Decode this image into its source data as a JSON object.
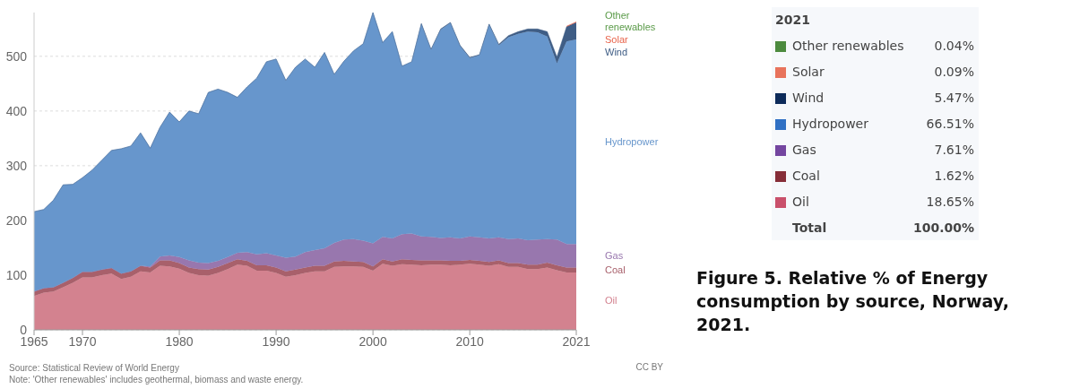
{
  "chart_data": [
    {
      "type": "area",
      "stacked": true,
      "x": [
        1965,
        1966,
        1967,
        1968,
        1969,
        1970,
        1971,
        1972,
        1973,
        1974,
        1975,
        1976,
        1977,
        1978,
        1979,
        1980,
        1981,
        1982,
        1983,
        1984,
        1985,
        1986,
        1987,
        1988,
        1989,
        1990,
        1991,
        1992,
        1993,
        1994,
        1995,
        1996,
        1997,
        1998,
        1999,
        2000,
        2001,
        2002,
        2003,
        2004,
        2005,
        2006,
        2007,
        2008,
        2009,
        2010,
        2011,
        2012,
        2013,
        2014,
        2015,
        2016,
        2017,
        2018,
        2019,
        2020,
        2021
      ],
      "series": [
        {
          "name": "Oil",
          "color": "#d3828f",
          "values": [
            62,
            68,
            70,
            78,
            86,
            96,
            96,
            100,
            103,
            93,
            97,
            107,
            105,
            117,
            116,
            112,
            104,
            100,
            99,
            104,
            111,
            119,
            117,
            108,
            108,
            104,
            97,
            100,
            104,
            107,
            107,
            115,
            116,
            116,
            115,
            108,
            121,
            117,
            120,
            119,
            118,
            119,
            119,
            118,
            119,
            121,
            119,
            117,
            120,
            115,
            115,
            111,
            111,
            114,
            109,
            105,
            105
          ]
        },
        {
          "name": "Coal",
          "color": "#a8606b",
          "values": [
            8,
            8,
            8,
            8,
            9,
            10,
            10,
            10,
            10,
            10,
            10,
            10,
            9,
            10,
            11,
            10,
            10,
            11,
            11,
            11,
            11,
            10,
            9,
            10,
            10,
            10,
            10,
            10,
            10,
            10,
            10,
            10,
            10,
            9,
            9,
            8,
            8,
            8,
            9,
            9,
            9,
            8,
            8,
            8,
            7,
            7,
            7,
            7,
            7,
            7,
            7,
            8,
            8,
            9,
            9,
            9,
            9
          ]
        },
        {
          "name": "Gas",
          "color": "#9877ae",
          "values": [
            0,
            0,
            0,
            0,
            0,
            0,
            0,
            0,
            0,
            0,
            0,
            0,
            2,
            7,
            9,
            11,
            13,
            12,
            12,
            11,
            11,
            12,
            16,
            20,
            22,
            22,
            25,
            24,
            28,
            29,
            32,
            34,
            39,
            41,
            39,
            42,
            41,
            42,
            46,
            48,
            44,
            43,
            41,
            43,
            41,
            43,
            43,
            43,
            42,
            44,
            45,
            45,
            46,
            43,
            47,
            43,
            43
          ]
        },
        {
          "name": "Hydropower",
          "color": "#6796cc",
          "values": [
            146,
            144,
            159,
            179,
            171,
            172,
            186,
            200,
            215,
            228,
            229,
            243,
            216,
            236,
            262,
            247,
            273,
            272,
            312,
            314,
            301,
            284,
            302,
            322,
            350,
            359,
            324,
            346,
            353,
            334,
            358,
            308,
            326,
            344,
            360,
            422,
            355,
            378,
            307,
            314,
            388,
            342,
            381,
            392,
            352,
            326,
            333,
            391,
            351,
            369,
            374,
            381,
            379,
            370,
            322,
            370,
            374
          ]
        },
        {
          "name": "Wind",
          "color": "#3f5d85",
          "values": [
            0,
            0,
            0,
            0,
            0,
            0,
            0,
            0,
            0,
            0,
            0,
            0,
            0,
            0,
            0,
            0,
            0,
            0,
            0,
            0,
            0,
            0,
            0,
            0,
            0,
            0,
            0,
            0,
            0,
            0,
            0,
            0,
            0,
            0,
            0,
            0,
            0,
            0,
            0,
            0,
            1,
            1,
            1,
            1,
            1,
            1,
            1,
            1,
            2,
            3,
            4,
            5,
            6,
            9,
            12,
            27,
            31
          ]
        },
        {
          "name": "Solar",
          "color": "#e8634a",
          "values": [
            null,
            null,
            null,
            null,
            null,
            null,
            null,
            null,
            null,
            null,
            null,
            null,
            null,
            null,
            null,
            null,
            null,
            null,
            null,
            null,
            null,
            null,
            null,
            null,
            null,
            null,
            null,
            null,
            null,
            null,
            null,
            null,
            null,
            null,
            null,
            null,
            null,
            null,
            null,
            null,
            null,
            null,
            null,
            null,
            null,
            null,
            null,
            null,
            null,
            null,
            null,
            null,
            null,
            null,
            null,
            1,
            1
          ]
        },
        {
          "name": "Other renewables",
          "color": "#5a9a48",
          "values": [
            null,
            null,
            null,
            null,
            null,
            null,
            null,
            null,
            null,
            null,
            null,
            null,
            null,
            null,
            null,
            null,
            null,
            null,
            null,
            null,
            null,
            null,
            null,
            null,
            null,
            null,
            null,
            null,
            null,
            null,
            null,
            null,
            null,
            null,
            null,
            null,
            null,
            null,
            null,
            null,
            null,
            null,
            null,
            null,
            null,
            null,
            null,
            null,
            null,
            null,
            null,
            null,
            null,
            null,
            null,
            null,
            null
          ]
        }
      ],
      "xlim": [
        1965,
        2021
      ],
      "xticks": [
        1965,
        1970,
        1980,
        1990,
        2000,
        2010,
        2021
      ],
      "ylim": [
        0,
        580
      ],
      "yticks": [
        0,
        100,
        200,
        300,
        400,
        500
      ],
      "grid": "y",
      "legend": "right",
      "annotations": [
        "Source: Statistical Review of World Energy",
        "Note: 'Other renewables' includes geothermal, biomass and waste energy.",
        "CC BY"
      ]
    },
    {
      "type": "other",
      "title": "2021",
      "categories": [
        "Other renewables",
        "Solar",
        "Wind",
        "Hydropower",
        "Gas",
        "Coal",
        "Oil"
      ],
      "value_labels": [
        "0.04%",
        "0.09%",
        "5.47%",
        "66.51%",
        "7.61%",
        "1.62%",
        "18.65%"
      ],
      "colors": [
        "#4c8a3e",
        "#e8735c",
        "#0d2b5a",
        "#2f70c4",
        "#7446a0",
        "#862e38",
        "#c9506b"
      ],
      "annotations": [
        "Total",
        "100.00%",
        "Figure 5. Relative % of Energy consumption by source, Norway, 2021."
      ]
    }
  ]
}
